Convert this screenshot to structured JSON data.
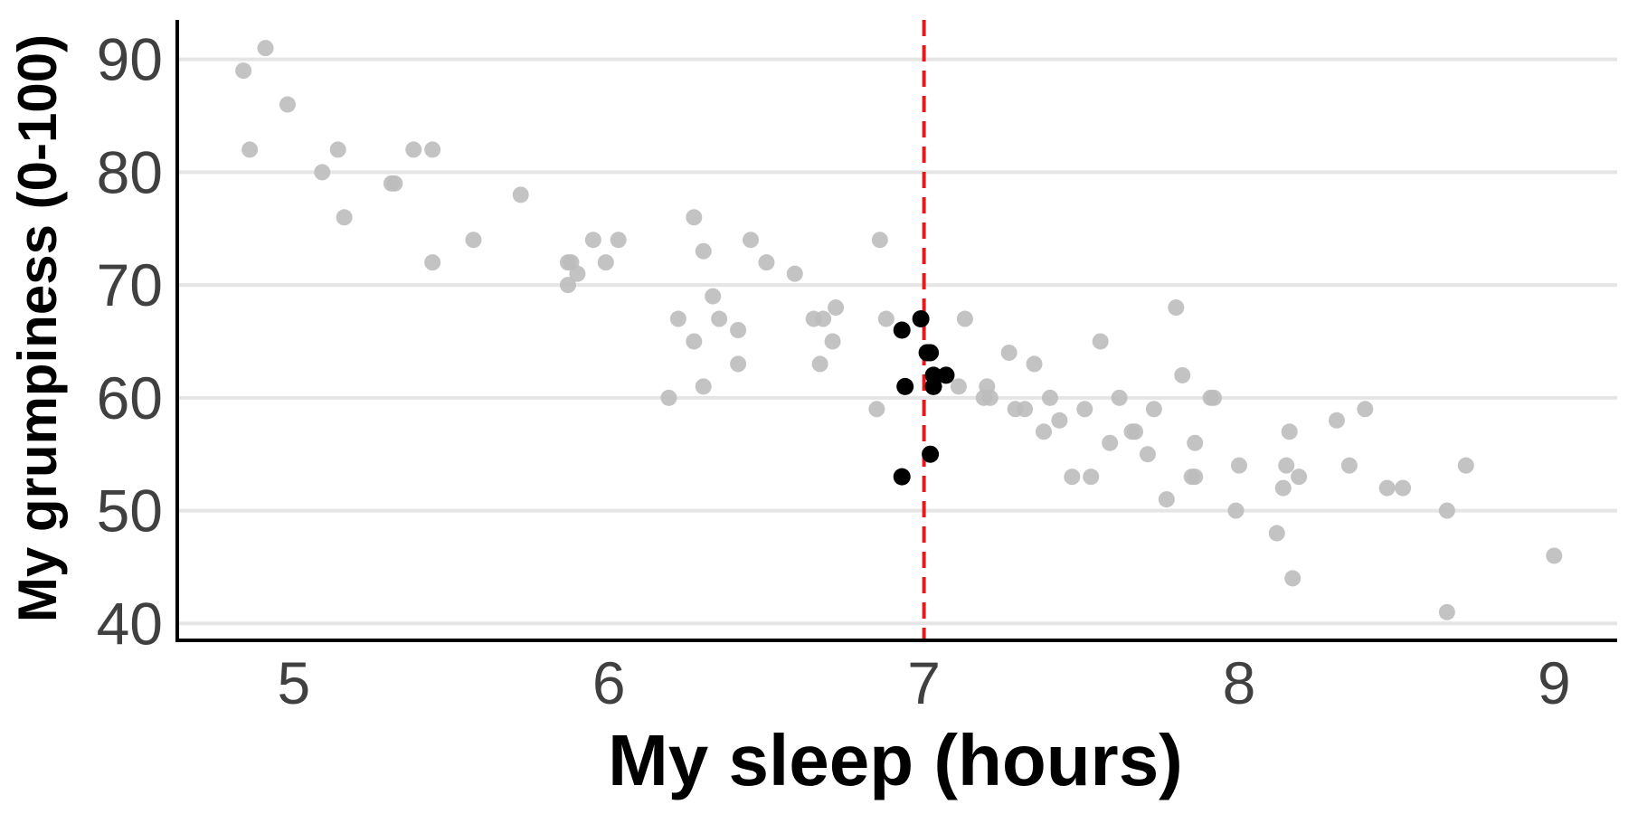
{
  "chart_data": {
    "type": "scatter",
    "xlabel": "My sleep (hours)",
    "ylabel": "My grumpiness (0-100)",
    "xlim": [
      4.63,
      9.2
    ],
    "ylim": [
      38.5,
      93.5
    ],
    "xticks": [
      "5",
      "6",
      "7",
      "8",
      "9"
    ],
    "yticks": [
      "40",
      "50",
      "60",
      "70",
      "80",
      "90"
    ],
    "grid": "horizontal",
    "reference_line": {
      "x": 7,
      "style": "dashed",
      "color": "#e41a1c"
    },
    "colors": {
      "background_points": "#bdbdbd",
      "highlight_points": "#000000",
      "gridline": "#e5e5e5",
      "axis": "#000000"
    },
    "series": [
      {
        "points": [
          [
            4.84,
            89
          ],
          [
            4.91,
            91
          ],
          [
            4.86,
            82
          ],
          [
            4.98,
            86
          ],
          [
            5.09,
            80
          ],
          [
            5.14,
            82
          ],
          [
            5.16,
            76
          ],
          [
            5.31,
            79
          ],
          [
            5.32,
            79
          ],
          [
            5.38,
            82
          ],
          [
            5.44,
            82
          ],
          [
            5.44,
            72
          ],
          [
            5.57,
            74
          ],
          [
            5.72,
            78
          ],
          [
            5.87,
            72
          ],
          [
            5.88,
            72
          ],
          [
            5.87,
            70
          ],
          [
            5.9,
            71
          ],
          [
            5.95,
            74
          ],
          [
            5.99,
            72
          ],
          [
            6.03,
            74
          ],
          [
            6.19,
            60
          ],
          [
            6.22,
            67
          ],
          [
            6.27,
            76
          ],
          [
            6.27,
            65
          ],
          [
            6.3,
            73
          ],
          [
            6.3,
            61
          ],
          [
            6.33,
            69
          ],
          [
            6.35,
            67
          ],
          [
            6.41,
            66
          ],
          [
            6.41,
            63
          ],
          [
            6.45,
            74
          ],
          [
            6.5,
            72
          ],
          [
            6.59,
            71
          ],
          [
            6.65,
            67
          ],
          [
            6.67,
            63
          ],
          [
            6.68,
            67
          ],
          [
            6.71,
            65
          ],
          [
            6.72,
            68
          ],
          [
            6.85,
            59
          ],
          [
            6.86,
            74
          ],
          [
            6.88,
            67
          ],
          [
            7.13,
            67
          ],
          [
            7.11,
            61
          ],
          [
            7.19,
            60
          ],
          [
            7.2,
            61
          ],
          [
            7.21,
            60
          ],
          [
            7.27,
            64
          ],
          [
            7.29,
            59
          ],
          [
            7.32,
            59
          ],
          [
            7.35,
            63
          ],
          [
            7.38,
            57
          ],
          [
            7.4,
            60
          ],
          [
            7.43,
            58
          ],
          [
            7.47,
            53
          ],
          [
            7.51,
            59
          ],
          [
            7.53,
            53
          ],
          [
            7.56,
            65
          ],
          [
            7.59,
            56
          ],
          [
            7.62,
            60
          ],
          [
            7.66,
            57
          ],
          [
            7.67,
            57
          ],
          [
            7.71,
            55
          ],
          [
            7.73,
            59
          ],
          [
            7.77,
            51
          ],
          [
            7.8,
            68
          ],
          [
            7.82,
            62
          ],
          [
            7.85,
            53
          ],
          [
            7.86,
            56
          ],
          [
            7.86,
            53
          ],
          [
            7.91,
            60
          ],
          [
            7.92,
            60
          ],
          [
            7.99,
            50
          ],
          [
            8.0,
            54
          ],
          [
            8.12,
            48
          ],
          [
            8.14,
            52
          ],
          [
            8.15,
            54
          ],
          [
            8.16,
            57
          ],
          [
            8.17,
            44
          ],
          [
            8.19,
            53
          ],
          [
            8.31,
            58
          ],
          [
            8.35,
            54
          ],
          [
            8.4,
            59
          ],
          [
            8.47,
            52
          ],
          [
            8.52,
            52
          ],
          [
            8.66,
            50
          ],
          [
            8.66,
            41
          ],
          [
            8.72,
            54
          ],
          [
            9.0,
            46
          ]
        ]
      },
      {
        "points": [
          [
            6.93,
            66
          ],
          [
            6.94,
            61
          ],
          [
            6.93,
            53
          ],
          [
            6.99,
            67
          ],
          [
            7.01,
            64
          ],
          [
            7.02,
            64
          ],
          [
            7.03,
            62
          ],
          [
            7.03,
            61
          ],
          [
            7.07,
            62
          ],
          [
            7.02,
            55
          ]
        ]
      }
    ]
  }
}
